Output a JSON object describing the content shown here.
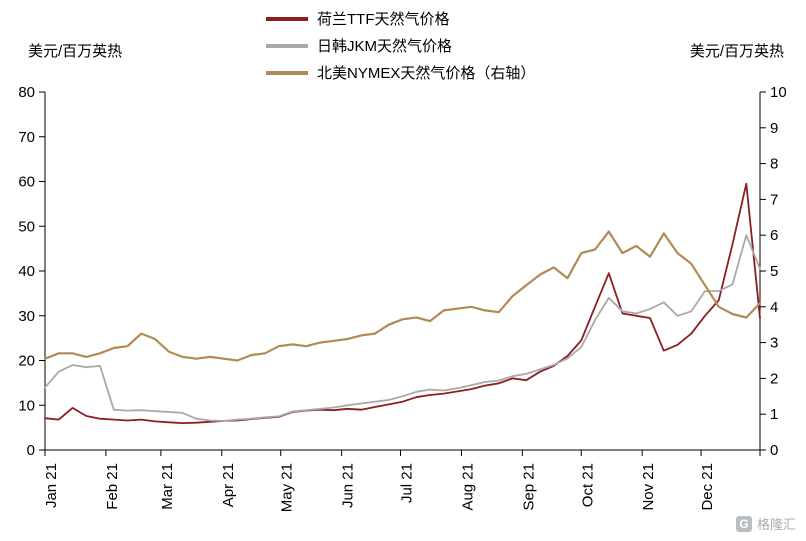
{
  "axis_units": {
    "left": "美元/百万英热",
    "right": "美元/百万英热"
  },
  "watermark": {
    "logo_letter": "G",
    "text": "格隆汇"
  },
  "chart_data": {
    "type": "line",
    "title": "",
    "grid": false,
    "legend_position": "top-center",
    "x_labels": [
      "Jan 21",
      "Feb 21",
      "Mar 21",
      "Apr 21",
      "May 21",
      "Jun 21",
      "Jul 21",
      "Aug 21",
      "Sep 21",
      "Oct 21",
      "Nov 21",
      "Dec 21"
    ],
    "x_label_days": [
      0,
      31,
      59,
      90,
      120,
      151,
      181,
      212,
      243,
      273,
      304,
      334
    ],
    "x_total_days": 364,
    "x_step_days": 7,
    "left_axis": {
      "label": "美元/百万英热",
      "min": 0,
      "max": 80,
      "ticks": [
        0,
        10,
        20,
        30,
        40,
        50,
        60,
        70,
        80
      ]
    },
    "right_axis": {
      "label": "美元/百万英热",
      "min": 0,
      "max": 10,
      "ticks": [
        0,
        1,
        2,
        3,
        4,
        5,
        6,
        7,
        8,
        9,
        10
      ]
    },
    "series": [
      {
        "name": "荷兰TTF天然气价格",
        "color": "#8d1d20",
        "axis": "left",
        "values": [
          7.1,
          6.8,
          9.4,
          7.6,
          7.0,
          6.8,
          6.6,
          6.8,
          6.4,
          6.2,
          6.0,
          6.1,
          6.3,
          6.5,
          6.6,
          6.9,
          7.2,
          7.4,
          8.5,
          8.8,
          9.0,
          8.9,
          9.2,
          9.0,
          9.6,
          10.2,
          10.8,
          11.8,
          12.3,
          12.6,
          13.1,
          13.6,
          14.4,
          14.9,
          16.0,
          15.6,
          17.5,
          18.8,
          21.0,
          24.5,
          32.0,
          39.5,
          30.5,
          30.0,
          29.5,
          22.2,
          23.5,
          26.0,
          30.0,
          33.5,
          46.0,
          59.5,
          29.5
        ]
      },
      {
        "name": "日韩JKM天然气价格",
        "color": "#a9a9a9",
        "axis": "left",
        "values": [
          14.0,
          17.5,
          19.0,
          18.5,
          18.8,
          9.0,
          8.8,
          8.9,
          8.7,
          8.5,
          8.3,
          7.0,
          6.6,
          6.5,
          6.8,
          7.0,
          7.3,
          7.5,
          8.6,
          8.9,
          9.2,
          9.5,
          10.0,
          10.4,
          10.8,
          11.2,
          12.0,
          13.0,
          13.5,
          13.3,
          13.8,
          14.5,
          15.2,
          15.5,
          16.5,
          17.0,
          18.0,
          19.0,
          20.5,
          23.0,
          29.0,
          34.0,
          31.0,
          30.5,
          31.5,
          33.0,
          30.0,
          31.0,
          35.5,
          35.5,
          37.0,
          48.0,
          40.5
        ]
      },
      {
        "name": "北美NYMEX天然气价格（右轴）",
        "color": "#b08b55",
        "axis": "right",
        "values": [
          2.55,
          2.7,
          2.7,
          2.6,
          2.7,
          2.85,
          2.9,
          3.25,
          3.1,
          2.75,
          2.6,
          2.55,
          2.6,
          2.55,
          2.5,
          2.65,
          2.7,
          2.9,
          2.95,
          2.9,
          3.0,
          3.05,
          3.1,
          3.2,
          3.25,
          3.5,
          3.65,
          3.7,
          3.6,
          3.9,
          3.95,
          4.0,
          3.9,
          3.85,
          4.3,
          4.6,
          4.9,
          5.1,
          4.8,
          5.5,
          5.6,
          6.1,
          5.5,
          5.7,
          5.4,
          6.05,
          5.5,
          5.2,
          4.6,
          4.0,
          3.8,
          3.7,
          4.1
        ]
      }
    ]
  }
}
